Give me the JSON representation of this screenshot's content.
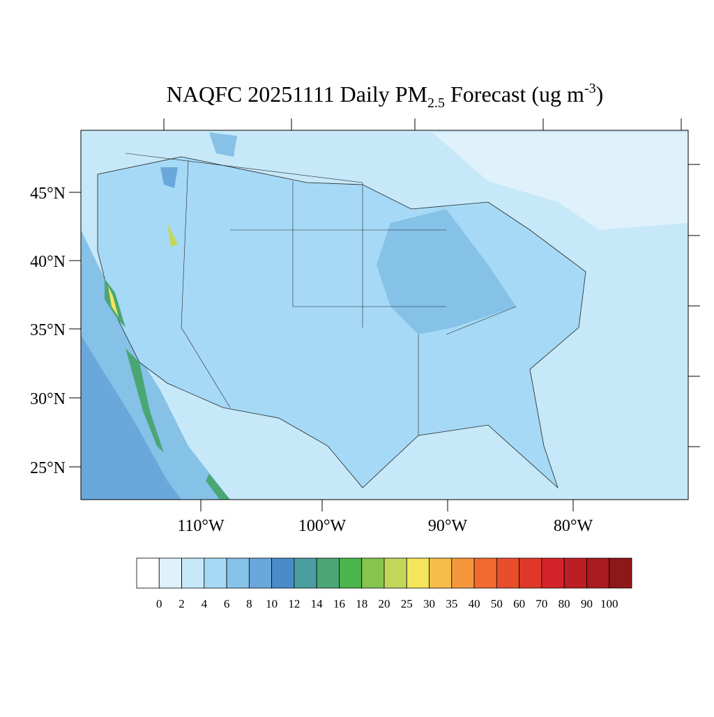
{
  "title": {
    "main": "NAQFC 20251111 Daily PM",
    "sub": "2.5",
    "middle": " Forecast (ug m",
    "sup": "-3",
    "end": ")"
  },
  "map": {
    "lat_labels": [
      "45°N",
      "40°N",
      "35°N",
      "30°N",
      "25°N"
    ],
    "lon_labels": [
      "110°W",
      "100°W",
      "90°W",
      "80°W"
    ]
  },
  "colorbar": {
    "levels": [
      "0",
      "2",
      "4",
      "6",
      "8",
      "10",
      "12",
      "14",
      "16",
      "18",
      "20",
      "25",
      "30",
      "35",
      "40",
      "50",
      "60",
      "70",
      "80",
      "90",
      "100"
    ],
    "colors": [
      "#ffffff",
      "#dff1fa",
      "#c6e8f8",
      "#a6d9f5",
      "#86c1e8",
      "#6aa8dc",
      "#4a8cc9",
      "#4a9ea0",
      "#4aa775",
      "#4ab54a",
      "#86c44e",
      "#c2d75a",
      "#f4e65a",
      "#f6bd4a",
      "#f5983c",
      "#f26a30",
      "#e84e2c",
      "#e03828",
      "#d42229",
      "#bd1e24",
      "#a91b20",
      "#8e1718"
    ]
  }
}
